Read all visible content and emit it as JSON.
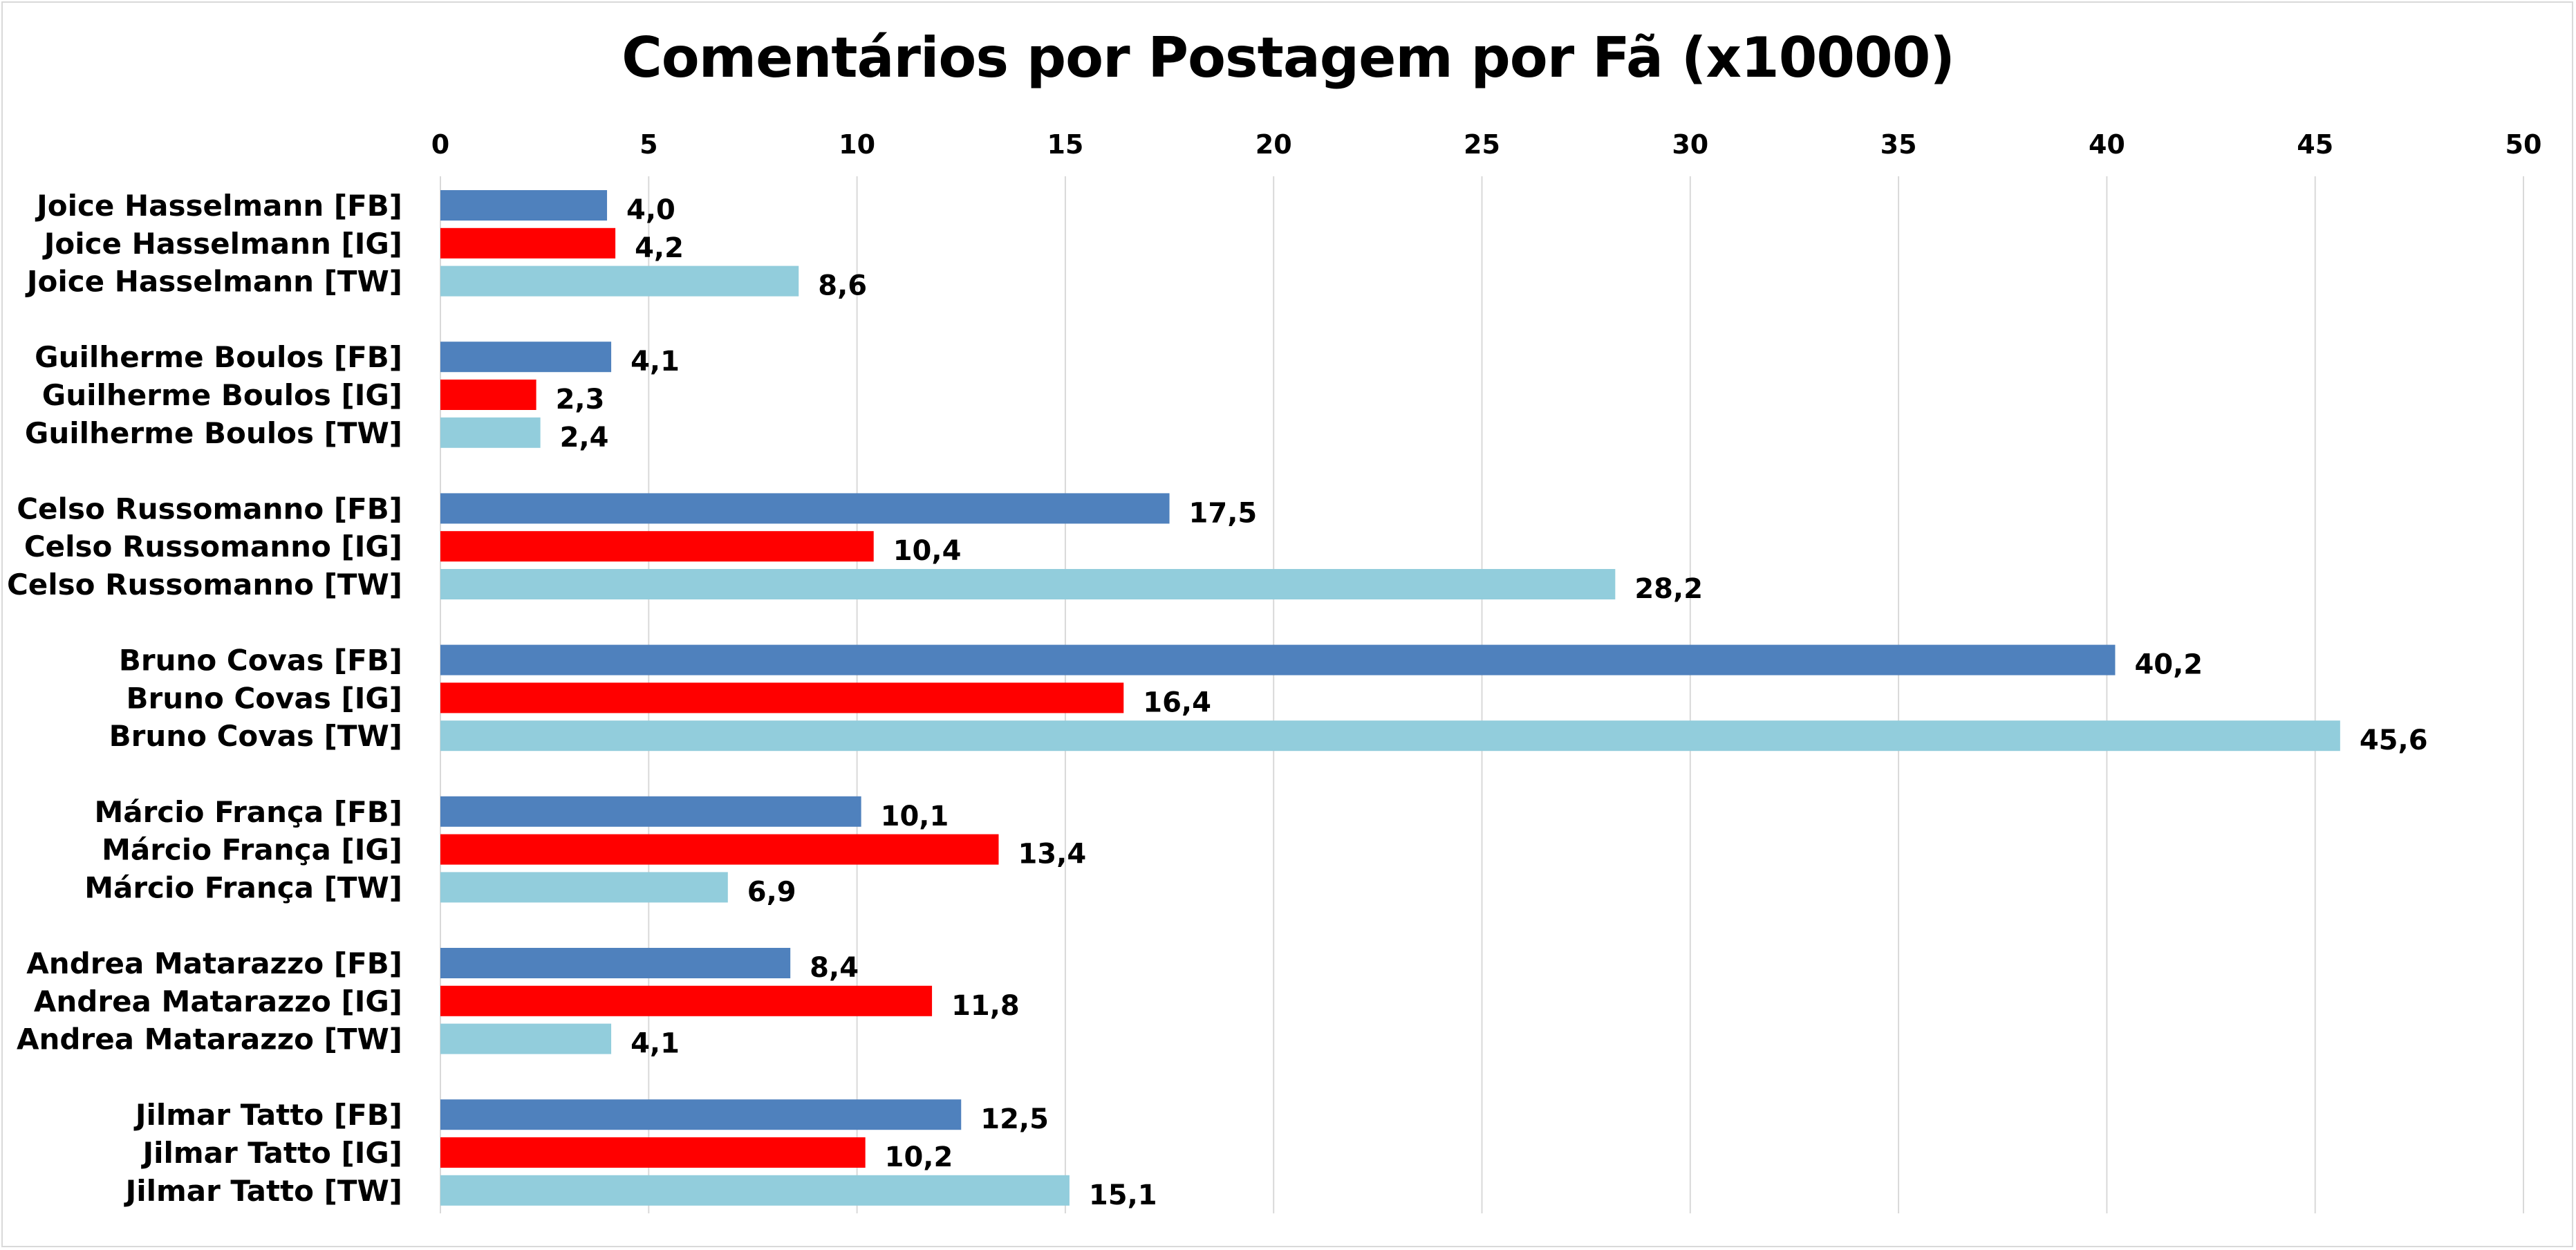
{
  "chart_data": {
    "type": "bar",
    "orientation": "horizontal",
    "title": "Comentários por Postagem por Fã (x10000)",
    "xlim": [
      0,
      50
    ],
    "xticks": [
      0,
      5,
      10,
      15,
      20,
      25,
      30,
      35,
      40,
      45,
      50
    ],
    "x_axis_position": "top",
    "grid": true,
    "decimal_separator": ",",
    "colors": {
      "FB": "#4f81bd",
      "IG": "#ff0000",
      "TW": "#92cddc",
      "grid": "#d9d9d9"
    },
    "groups": [
      {
        "bars": [
          {
            "label": "Joice Hasselmann [FB]",
            "network": "FB",
            "value": 4.0,
            "value_label": "4,0"
          },
          {
            "label": "Joice Hasselmann [IG]",
            "network": "IG",
            "value": 4.2,
            "value_label": "4,2"
          },
          {
            "label": "Joice Hasselmann [TW]",
            "network": "TW",
            "value": 8.6,
            "value_label": "8,6"
          }
        ]
      },
      {
        "bars": [
          {
            "label": "Guilherme Boulos [FB]",
            "network": "FB",
            "value": 4.1,
            "value_label": "4,1"
          },
          {
            "label": "Guilherme Boulos [IG]",
            "network": "IG",
            "value": 2.3,
            "value_label": "2,3"
          },
          {
            "label": "Guilherme Boulos [TW]",
            "network": "TW",
            "value": 2.4,
            "value_label": "2,4"
          }
        ]
      },
      {
        "bars": [
          {
            "label": "Celso Russomanno [FB]",
            "network": "FB",
            "value": 17.5,
            "value_label": "17,5"
          },
          {
            "label": "Celso Russomanno [IG]",
            "network": "IG",
            "value": 10.4,
            "value_label": "10,4"
          },
          {
            "label": "Celso Russomanno [TW]",
            "network": "TW",
            "value": 28.2,
            "value_label": "28,2"
          }
        ]
      },
      {
        "bars": [
          {
            "label": "Bruno Covas [FB]",
            "network": "FB",
            "value": 40.2,
            "value_label": "40,2"
          },
          {
            "label": "Bruno Covas [IG]",
            "network": "IG",
            "value": 16.4,
            "value_label": "16,4"
          },
          {
            "label": "Bruno Covas [TW]",
            "network": "TW",
            "value": 45.6,
            "value_label": "45,6"
          }
        ]
      },
      {
        "bars": [
          {
            "label": "Márcio França [FB]",
            "network": "FB",
            "value": 10.1,
            "value_label": "10,1"
          },
          {
            "label": "Márcio França [IG]",
            "network": "IG",
            "value": 13.4,
            "value_label": "13,4"
          },
          {
            "label": "Márcio França [TW]",
            "network": "TW",
            "value": 6.9,
            "value_label": "6,9"
          }
        ]
      },
      {
        "bars": [
          {
            "label": "Andrea Matarazzo [FB]",
            "network": "FB",
            "value": 8.4,
            "value_label": "8,4"
          },
          {
            "label": "Andrea Matarazzo [IG]",
            "network": "IG",
            "value": 11.8,
            "value_label": "11,8"
          },
          {
            "label": "Andrea Matarazzo [TW]",
            "network": "TW",
            "value": 4.1,
            "value_label": "4,1"
          }
        ]
      },
      {
        "bars": [
          {
            "label": "Jilmar Tatto [FB]",
            "network": "FB",
            "value": 12.5,
            "value_label": "12,5"
          },
          {
            "label": "Jilmar Tatto [IG]",
            "network": "IG",
            "value": 10.2,
            "value_label": "10,2"
          },
          {
            "label": "Jilmar Tatto [TW]",
            "network": "TW",
            "value": 15.1,
            "value_label": "15,1"
          }
        ]
      }
    ]
  }
}
